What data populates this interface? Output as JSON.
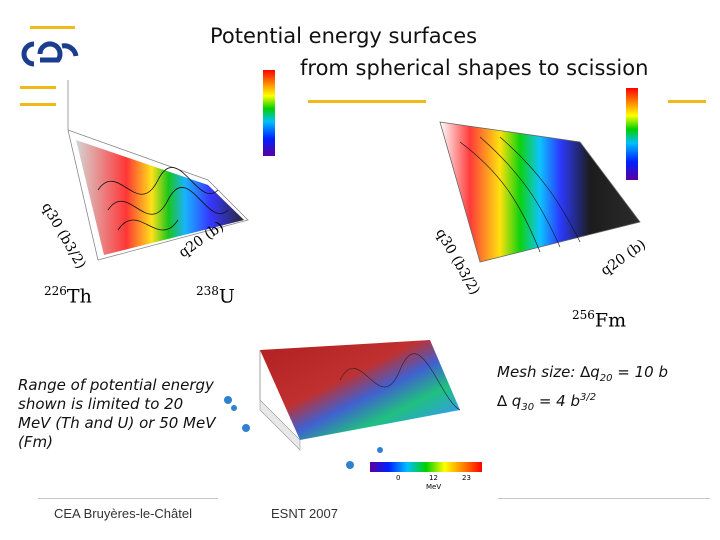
{
  "title": {
    "line1": "Potential energy surfaces",
    "line2": "from spherical shapes to scission"
  },
  "logo": {
    "text": "cea"
  },
  "nuclei": [
    {
      "mass": "226",
      "symbol": "Th"
    },
    {
      "mass": "238",
      "symbol": "U"
    },
    {
      "mass": "256",
      "symbol": "Fm"
    }
  ],
  "axis_labels": {
    "q20": "q20 (b)",
    "q30": "q30 (b3/2)"
  },
  "colorbar_bottom": {
    "ticks": [
      "0",
      "12",
      "23"
    ],
    "unit": "MeV"
  },
  "range_note": "Range of potential energy shown is limited to 20 MeV (Th and U) or 50 MeV (Fm)",
  "mesh": {
    "prefix": "Mesh size: ",
    "delta": "∆",
    "q20_sym": "q",
    "q20_sub": "20",
    "q20_val": " = 10 b",
    "q30_prefix": "∆ q",
    "q30_sub": "30",
    "q30_val": " = 4 b",
    "q30_sup": "3/2"
  },
  "footer": {
    "left": "CEA Bruyères-le-Châtel",
    "center": "ESNT 2007"
  },
  "colors": {
    "accent": "#f2b91b",
    "logo": "#1a3d8f"
  }
}
